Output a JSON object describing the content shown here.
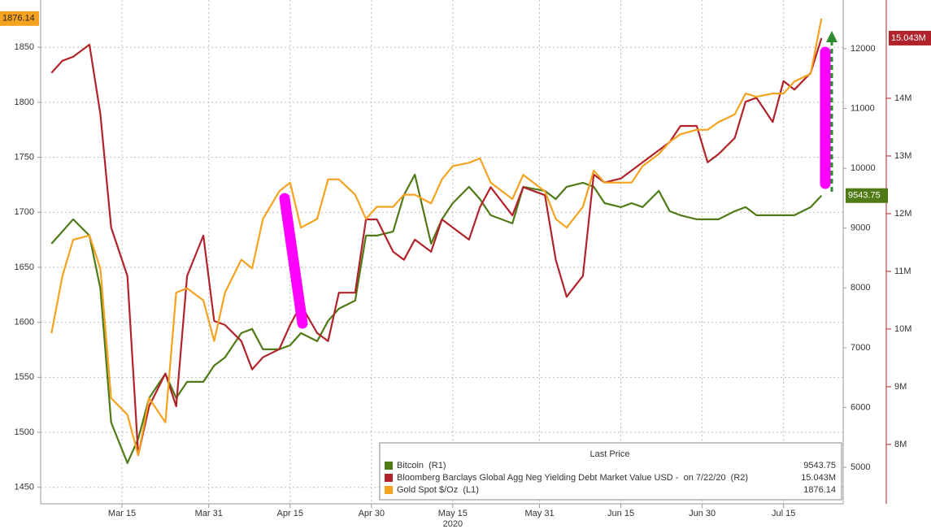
{
  "chart_data": {
    "type": "line",
    "x": [
      "2020-03-02",
      "2020-03-04",
      "2020-03-06",
      "2020-03-09",
      "2020-03-11",
      "2020-03-13",
      "2020-03-16",
      "2020-03-18",
      "2020-03-20",
      "2020-03-23",
      "2020-03-25",
      "2020-03-27",
      "2020-03-30",
      "2020-04-01",
      "2020-04-03",
      "2020-04-06",
      "2020-04-08",
      "2020-04-10",
      "2020-04-13",
      "2020-04-15",
      "2020-04-17",
      "2020-04-20",
      "2020-04-22",
      "2020-04-24",
      "2020-04-27",
      "2020-04-29",
      "2020-05-01",
      "2020-05-04",
      "2020-05-06",
      "2020-05-08",
      "2020-05-11",
      "2020-05-13",
      "2020-05-15",
      "2020-05-18",
      "2020-05-20",
      "2020-05-22",
      "2020-05-26",
      "2020-05-28",
      "2020-06-01",
      "2020-06-03",
      "2020-06-05",
      "2020-06-08",
      "2020-06-10",
      "2020-06-12",
      "2020-06-15",
      "2020-06-17",
      "2020-06-19",
      "2020-06-22",
      "2020-06-24",
      "2020-06-26",
      "2020-06-29",
      "2020-07-01",
      "2020-07-03",
      "2020-07-06",
      "2020-07-08",
      "2020-07-10",
      "2020-07-13",
      "2020-07-15",
      "2020-07-17",
      "2020-07-20",
      "2020-07-22"
    ],
    "xlim": [
      "2020-02-29",
      "2020-07-26"
    ],
    "xticks": [
      {
        "value": "2020-03-15",
        "label": "Mar 15"
      },
      {
        "value": "2020-03-31",
        "label": "Mar 31"
      },
      {
        "value": "2020-04-15",
        "label": "Apr 15"
      },
      {
        "value": "2020-04-30",
        "label": "Apr 30"
      },
      {
        "value": "2020-05-15",
        "label": "May 15"
      },
      {
        "value": "2020-05-31",
        "label": "May 31"
      },
      {
        "value": "2020-06-15",
        "label": "Jun 15"
      },
      {
        "value": "2020-06-30",
        "label": "Jun 30"
      },
      {
        "value": "2020-07-15",
        "label": "Jul 15"
      }
    ],
    "x_year_label": "2020",
    "ylim": [
      1435,
      1893
    ],
    "yticks": [
      1450,
      1500,
      1550,
      1600,
      1650,
      1700,
      1750,
      1800,
      1850
    ],
    "y2lim": [
      4389,
      12815
    ],
    "y2ticks": [
      5000,
      6000,
      7000,
      8000,
      9000,
      10000,
      11000,
      12000
    ],
    "y3lim": [
      6.97,
      15.704
    ],
    "y3ticks": [
      {
        "value": 8,
        "label": "8M"
      },
      {
        "value": 9,
        "label": "9M"
      },
      {
        "value": 10,
        "label": "10M"
      },
      {
        "value": 11,
        "label": "11M"
      },
      {
        "value": 12,
        "label": "12M"
      },
      {
        "value": 13,
        "label": "13M"
      },
      {
        "value": 14,
        "label": "14M"
      }
    ],
    "grid": true,
    "legend_title": "Last Price",
    "series": [
      {
        "name": "Bitcoin  (R1)",
        "color": "#4f7a16",
        "axis": "y2",
        "last_label": "9543.75",
        "values": [
          8739,
          8943,
          9147,
          8875,
          7992,
          5750,
          5071,
          5478,
          6158,
          6565,
          6158,
          6429,
          6429,
          6701,
          6837,
          7245,
          7313,
          6973,
          6973,
          7041,
          7245,
          7109,
          7449,
          7652,
          7788,
          8875,
          8875,
          8943,
          9554,
          9894,
          8739,
          9147,
          9418,
          9690,
          9486,
          9215,
          9079,
          9690,
          9622,
          9486,
          9690,
          9758,
          9690,
          9418,
          9351,
          9418,
          9351,
          9622,
          9283,
          9215,
          9147,
          9147,
          9147,
          9283,
          9351,
          9215,
          9215,
          9215,
          9215,
          9351,
          9543.75
        ]
      },
      {
        "name": "Bloomberg Barclays Global Agg Neg Yielding Debt Market Value USD -  on 7/22/20  (R2)",
        "color": "#b0232a",
        "axis": "y3",
        "last_label": "15.043M",
        "values": [
          14.44,
          14.65,
          14.72,
          14.93,
          13.73,
          11.76,
          10.92,
          7.82,
          8.66,
          9.23,
          8.66,
          10.92,
          11.62,
          10.14,
          10.07,
          9.79,
          9.3,
          9.51,
          9.65,
          10.07,
          10.42,
          9.93,
          9.79,
          10.63,
          10.63,
          11.9,
          11.9,
          11.34,
          11.2,
          11.55,
          11.34,
          11.9,
          11.76,
          11.55,
          12.11,
          12.46,
          11.97,
          12.46,
          12.32,
          11.2,
          10.56,
          10.92,
          12.68,
          12.54,
          12.61,
          12.75,
          12.89,
          13.1,
          13.24,
          13.52,
          13.52,
          12.89,
          13.03,
          13.31,
          13.94,
          14.01,
          13.59,
          14.3,
          14.15,
          14.44,
          15.043
        ]
      },
      {
        "name": "Gold Spot $/Oz  (L1)",
        "color": "#f4a21f",
        "axis": "y",
        "last_label": "1876.14",
        "values": [
          1590,
          1642,
          1675,
          1679,
          1649,
          1531,
          1516,
          1479,
          1531,
          1509,
          1627,
          1631,
          1620,
          1583,
          1627,
          1657,
          1649,
          1694,
          1719,
          1727,
          1686,
          1694,
          1730,
          1730,
          1716,
          1694,
          1705,
          1705,
          1716,
          1716,
          1708,
          1730,
          1742,
          1745,
          1749,
          1727,
          1712,
          1734,
          1719,
          1694,
          1686,
          1705,
          1738,
          1727,
          1727,
          1727,
          1742,
          1753,
          1764,
          1771,
          1775,
          1775,
          1782,
          1789,
          1808,
          1805,
          1808,
          1808,
          1819,
          1826,
          1876.14
        ]
      }
    ]
  }
}
